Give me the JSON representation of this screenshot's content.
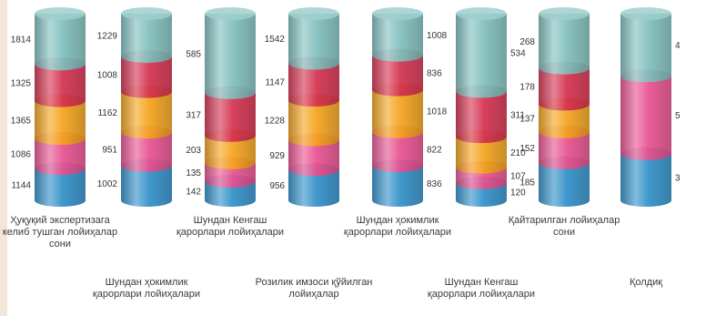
{
  "chart_data": {
    "type": "bar",
    "stacked": true,
    "style": "3d-cylinder",
    "categories": [
      "Ҳуқуқий экспертизага келиб тушган лойиҳалар сони",
      "Шундан ҳокимлик қарорлари лойиҳалари",
      "Шундан Кенгаш қарорлари лойиҳалари",
      "Розилик имзоси қўйилган лойиҳалар",
      "Шундан ҳокимлик қарорлари лойиҳалари",
      "Шундан Кенгаш қарорлари лойиҳалари",
      "Қайтарилган лойиҳалар сони",
      "Қолдиқ"
    ],
    "series": [
      {
        "color": "#2f8fc8",
        "values": [
          1144,
          1002,
          142,
          956,
          836,
          120,
          185,
          3
        ]
      },
      {
        "color": "#e8508e",
        "values": [
          1086,
          951,
          135,
          929,
          822,
          107,
          152,
          5
        ]
      },
      {
        "color": "#f4a31c",
        "values": [
          1365,
          1162,
          203,
          1228,
          1018,
          210,
          137,
          null
        ]
      },
      {
        "color": "#d4304e",
        "values": [
          1325,
          1008,
          317,
          1147,
          836,
          311,
          178,
          null
        ]
      },
      {
        "color": "#7fbfbd",
        "values": [
          1814,
          1229,
          585,
          1542,
          1008,
          534,
          268,
          4
        ]
      }
    ],
    "legend": "none",
    "grid": false
  }
}
